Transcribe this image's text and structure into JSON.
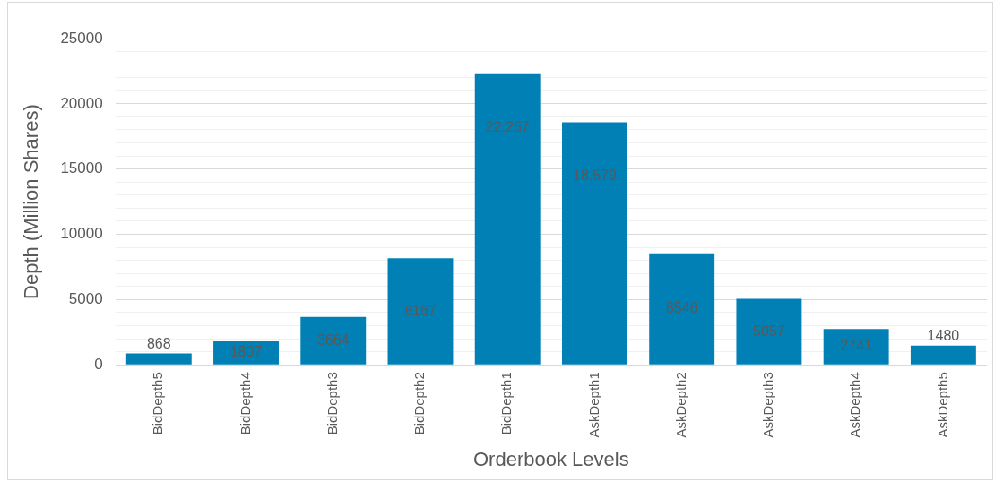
{
  "chart_data": {
    "type": "bar",
    "xlabel": "Orderbook Levels",
    "ylabel": "Depth (Million Shares)",
    "categories": [
      "BidDepth5",
      "BidDepth4",
      "BidDepth3",
      "BidDepth2",
      "BidDepth1",
      "AskDepth1",
      "AskDepth2",
      "AskDepth3",
      "AskDepth4",
      "AskDepth5"
    ],
    "values": [
      868,
      1807,
      3664,
      8167,
      22267,
      18579,
      8546,
      5057,
      2741,
      1480
    ],
    "value_labels": [
      "868",
      "1807",
      "3664",
      "8167",
      "22,267",
      "18,579",
      "8546",
      "5057",
      "2741",
      "1480"
    ],
    "color": "#0080b4",
    "ylim": [
      0,
      25000
    ],
    "yticks": [
      0,
      {
        "value": 1000,
        "label": null
      },
      {
        "value": 2000,
        "label": null
      },
      {
        "value": 3000,
        "label": null
      },
      {
        "value": 4000,
        "label": null
      },
      5000,
      {
        "value": 6000,
        "label": null
      },
      {
        "value": 7000,
        "label": null
      },
      {
        "value": 8000,
        "label": null
      },
      {
        "value": 9000,
        "label": null
      },
      10000,
      {
        "value": 11000,
        "label": null
      },
      {
        "value": 12000,
        "label": null
      },
      {
        "value": 13000,
        "label": null
      },
      {
        "value": 14000,
        "label": null
      },
      15000,
      {
        "value": 16000,
        "label": null
      },
      {
        "value": 17000,
        "label": null
      },
      {
        "value": 18000,
        "label": null
      },
      {
        "value": 19000,
        "label": null
      },
      20000,
      {
        "value": 21000,
        "label": null
      },
      {
        "value": 22000,
        "label": null
      },
      {
        "value": 23000,
        "label": null
      },
      {
        "value": 24000,
        "label": null
      },
      25000
    ],
    "grid": "y",
    "legend": false
  }
}
